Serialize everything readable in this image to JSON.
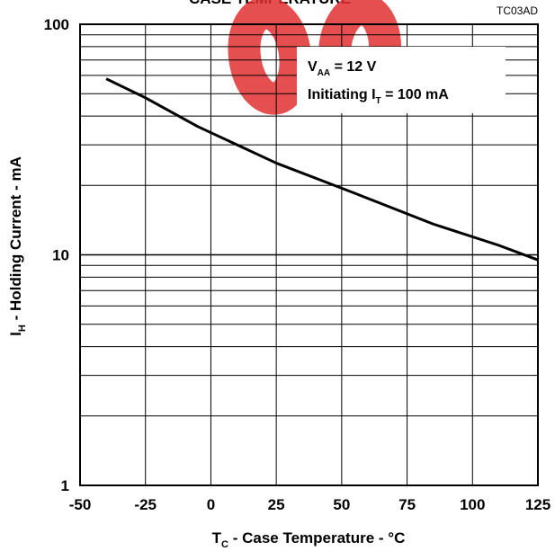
{
  "chart_data": {
    "type": "line",
    "title": "CASE TEMPERATURE",
    "figure_code": "TC03AD",
    "watermark_color": "#e03030",
    "xlabel": {
      "main": "T",
      "sub": "C",
      "rest": " - Case Temperature - °C"
    },
    "ylabel": {
      "main": "I",
      "sub": "H",
      "rest": " - Holding Current - mA"
    },
    "xlim": [
      -50,
      125
    ],
    "ylim": [
      1,
      100
    ],
    "yscale": "log",
    "grid": true,
    "x_ticks": [
      -50,
      -25,
      0,
      25,
      50,
      75,
      100,
      125
    ],
    "x_tick_labels": [
      "-50",
      "-25",
      "0",
      "25",
      "50",
      "75",
      "100",
      "125"
    ],
    "y_ticks": [
      1,
      10,
      100
    ],
    "y_tick_labels": [
      "1",
      "10",
      "100"
    ],
    "annotations": [
      {
        "main": "V",
        "sub": "AA",
        "rest": " = 12 V"
      },
      {
        "main": "Initiating I",
        "sub": "T",
        "rest": " = 100 mA"
      }
    ],
    "series": [
      {
        "x": [
          -40,
          -25,
          -5,
          25,
          55,
          85,
          110,
          125
        ],
        "y": [
          58,
          48,
          36,
          25,
          18.5,
          13.6,
          11,
          9.5
        ]
      }
    ]
  }
}
